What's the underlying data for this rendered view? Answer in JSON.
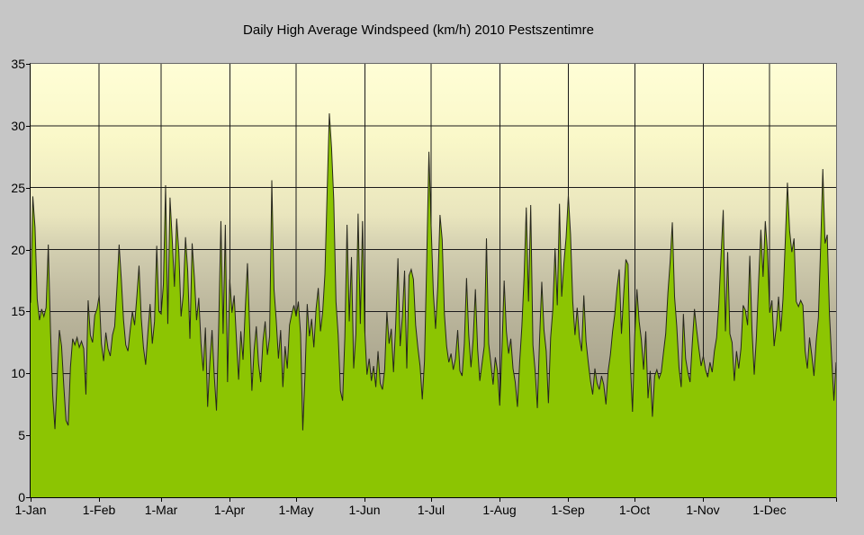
{
  "chart_data": {
    "type": "area",
    "title": "Daily High Average Windspeed (km/h) 2010 Pestszentimre",
    "xlabel": "",
    "ylabel": "",
    "unit": "km/h",
    "year": "2010",
    "location": "Pestszentimre",
    "ylim": [
      0,
      35
    ],
    "y_ticks": [
      0,
      5,
      10,
      15,
      20,
      25,
      30,
      35
    ],
    "grid": true,
    "legend": "none",
    "n_days": 365,
    "x_ticks": [
      {
        "label": "1-Jan",
        "day": 0
      },
      {
        "label": "1-Feb",
        "day": 31
      },
      {
        "label": "1-Mar",
        "day": 59
      },
      {
        "label": "1-Apr",
        "day": 90
      },
      {
        "label": "1-May",
        "day": 120
      },
      {
        "label": "1-Jun",
        "day": 151
      },
      {
        "label": "1-Jul",
        "day": 181
      },
      {
        "label": "1-Aug",
        "day": 212
      },
      {
        "label": "1-Sep",
        "day": 243
      },
      {
        "label": "1-Oct",
        "day": 273
      },
      {
        "label": "1-Nov",
        "day": 304
      },
      {
        "label": "1-Dec",
        "day": 334
      }
    ],
    "colors": {
      "chart_bg": "#c6c6c6",
      "area_fill": "#8cc502",
      "series_line": "#26261c",
      "gridline": "#1a1a1a",
      "plot_border_light": "#686868",
      "axis_line": "#000000",
      "text": "#000000",
      "plot_bg_stops": [
        "#fffed6 0%",
        "#f9f7c8 18%",
        "#e9e5bd 35%",
        "#d2ceb0 43%",
        "#bcb79d 56%",
        "#a9a48d 72%",
        "#a09b85 85%",
        "#8f8a75 100%"
      ]
    },
    "values": [
      15.7,
      24.3,
      21.8,
      16.0,
      14.3,
      15.2,
      14.6,
      15.3,
      20.4,
      13.4,
      8.2,
      5.5,
      9.6,
      13.5,
      12.2,
      9.0,
      6.2,
      5.8,
      10.5,
      12.8,
      12.3,
      12.9,
      12.1,
      12.6,
      12.0,
      8.3,
      15.9,
      13.1,
      12.5,
      14.7,
      15.2,
      16.3,
      12.4,
      11.0,
      13.3,
      12.0,
      11.4,
      13.1,
      13.8,
      16.9,
      20.4,
      17.6,
      14.3,
      12.3,
      11.8,
      13.5,
      15.0,
      13.9,
      16.2,
      18.7,
      14.5,
      12.1,
      10.7,
      13.3,
      15.6,
      12.4,
      14.2,
      20.3,
      15.0,
      14.8,
      17.2,
      25.2,
      14.0,
      24.2,
      20.8,
      17.0,
      22.5,
      19.8,
      14.6,
      16.4,
      21.0,
      18.3,
      12.8,
      20.5,
      17.8,
      14.3,
      16.1,
      12.4,
      10.2,
      13.7,
      7.3,
      10.9,
      13.5,
      9.8,
      7.0,
      13.8,
      22.3,
      13.2,
      22.0,
      9.3,
      17.6,
      14.9,
      16.3,
      12.8,
      9.5,
      13.4,
      11.1,
      15.2,
      18.9,
      13.6,
      8.6,
      11.9,
      13.8,
      10.8,
      9.3,
      12.6,
      14.2,
      11.5,
      13.0,
      25.6,
      16.8,
      14.3,
      11.2,
      13.5,
      8.9,
      12.2,
      10.4,
      13.9,
      14.8,
      15.5,
      14.6,
      15.8,
      13.2,
      5.4,
      9.8,
      15.6,
      13.0,
      14.4,
      12.1,
      15.2,
      16.9,
      13.4,
      15.0,
      18.0,
      24.6,
      31.0,
      28.2,
      24.0,
      15.8,
      13.1,
      8.6,
      7.8,
      12.9,
      22.0,
      14.2,
      19.4,
      10.4,
      13.2,
      22.9,
      14.0,
      22.3,
      13.5,
      9.9,
      11.2,
      9.4,
      10.6,
      8.9,
      11.8,
      9.2,
      8.7,
      10.3,
      15.0,
      12.4,
      13.6,
      10.1,
      14.0,
      19.3,
      12.2,
      14.6,
      18.3,
      10.4,
      17.9,
      18.4,
      17.6,
      13.9,
      12.1,
      10.6,
      7.9,
      11.0,
      19.0,
      27.9,
      21.9,
      16.5,
      13.6,
      17.0,
      22.8,
      20.8,
      14.8,
      12.2,
      10.9,
      11.6,
      10.3,
      11.2,
      13.5,
      10.2,
      9.8,
      12.4,
      17.7,
      13.1,
      10.5,
      12.8,
      16.8,
      12.0,
      9.4,
      10.8,
      12.2,
      20.9,
      12.4,
      10.8,
      9.1,
      11.3,
      10.2,
      7.4,
      11.9,
      17.5,
      13.4,
      11.6,
      12.8,
      10.4,
      9.3,
      7.3,
      10.9,
      13.8,
      17.8,
      23.4,
      15.8,
      23.6,
      12.3,
      10.2,
      7.2,
      12.8,
      17.4,
      13.5,
      11.8,
      7.6,
      12.9,
      15.2,
      20.1,
      15.5,
      23.7,
      16.2,
      18.9,
      21.0,
      24.4,
      21.2,
      15.8,
      13.1,
      15.3,
      12.9,
      11.8,
      16.3,
      12.6,
      10.9,
      9.4,
      8.3,
      10.4,
      9.2,
      8.7,
      9.8,
      9.1,
      7.5,
      10.2,
      11.5,
      13.4,
      14.8,
      16.9,
      18.4,
      13.2,
      16.4,
      19.2,
      18.8,
      10.9,
      6.9,
      13.0,
      16.8,
      14.2,
      12.7,
      10.3,
      13.4,
      8.0,
      10.2,
      6.5,
      9.8,
      10.3,
      9.6,
      10.1,
      11.7,
      13.2,
      16.5,
      19.0,
      22.2,
      16.2,
      13.8,
      10.5,
      8.9,
      14.8,
      11.2,
      10.1,
      9.3,
      12.4,
      15.2,
      13.5,
      12.0,
      10.6,
      11.4,
      10.3,
      9.7,
      10.9,
      10.1,
      11.8,
      12.9,
      15.6,
      19.5,
      23.2,
      13.4,
      19.8,
      13.2,
      12.5,
      9.4,
      11.8,
      10.4,
      12.0,
      15.5,
      15.1,
      13.9,
      19.5,
      13.5,
      9.9,
      13.0,
      17.5,
      21.6,
      17.8,
      22.3,
      19.8,
      14.9,
      15.9,
      12.2,
      13.8,
      16.2,
      13.4,
      16.0,
      20.5,
      25.4,
      21.5,
      19.8,
      20.9,
      15.8,
      15.4,
      15.9,
      15.5,
      11.8,
      10.4,
      12.9,
      11.5,
      9.8,
      12.6,
      14.5,
      20.2,
      26.5,
      20.5,
      21.2,
      14.8,
      11.2,
      7.8,
      10.9
    ]
  }
}
